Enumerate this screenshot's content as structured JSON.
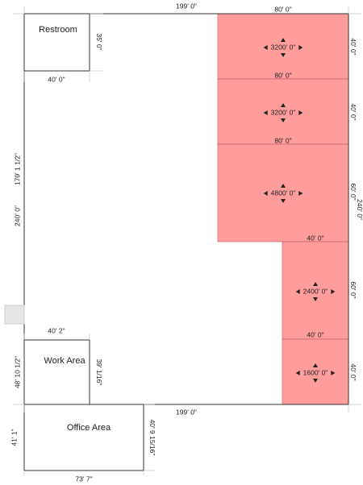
{
  "rooms": [
    {
      "label": "Restroom"
    },
    {
      "label": "Work Area"
    },
    {
      "label": "Office Area"
    }
  ],
  "spaces": [
    {
      "area": "3200' 0\""
    },
    {
      "area": "3200' 0\""
    },
    {
      "area": "4800' 0\""
    },
    {
      "area": "2400' 0\""
    },
    {
      "area": "1600' 0\""
    }
  ],
  "dimensions": [
    "199' 0\"",
    "80' 0\"",
    "35' 0\"",
    "40' 0\"",
    "179' 1 1/2\"",
    "240' 0\"",
    "40' 0\"",
    "80' 0\"",
    "40' 0\"",
    "80' 0\"",
    "60' 0\"",
    "240' 0\"",
    "40' 0\"",
    "60' 0\"",
    "40' 0\"",
    "40' 0\"",
    "40' 2\"",
    "48' 10 1/2\"",
    "39' 1/16\"",
    "199' 0\"",
    "41' 1\"",
    "40' 9 15/16\"",
    "73' 7\""
  ]
}
